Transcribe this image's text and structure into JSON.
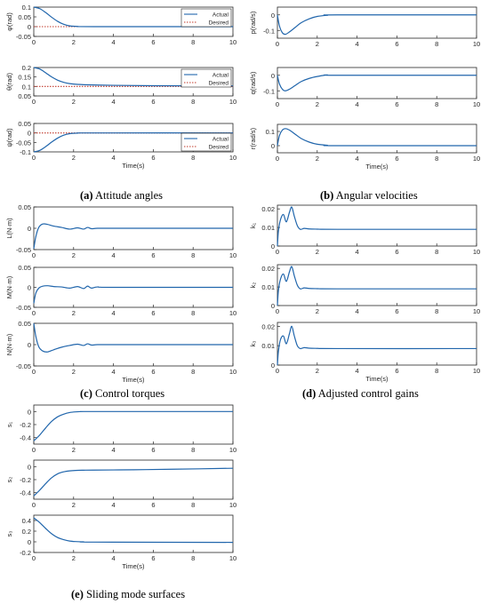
{
  "colors": {
    "actual": "#2166ac",
    "desired": "#c0392b",
    "axis": "#262626",
    "grid_bg": "#ffffff"
  },
  "captions": {
    "a": {
      "letter": "(a)",
      "text": " Attitude angles"
    },
    "b": {
      "letter": "(b)",
      "text": " Angular velocities"
    },
    "c": {
      "letter": "(c)",
      "text": " Control torques"
    },
    "d": {
      "letter": "(d)",
      "text": " Adjusted control gains"
    },
    "e": {
      "letter": "(e)",
      "text": " Sliding mode surfaces"
    }
  },
  "chart_data": [
    {
      "id": "a1",
      "type": "line",
      "ylabel": "φ(rad)",
      "xlabel": "",
      "xlim": [
        0,
        10
      ],
      "ylim": [
        -0.05,
        0.1
      ],
      "yticks": [
        "0.1",
        "0.05",
        "0",
        "-0.05"
      ],
      "ytick_values": [
        0.1,
        0.05,
        0,
        -0.05
      ],
      "xticks": [
        "0",
        "2",
        "4",
        "6",
        "8",
        "10"
      ],
      "legend": [
        "Actual",
        "Desired"
      ],
      "legend_position": "top-right",
      "series": [
        {
          "name": "Actual",
          "x": [
            0,
            0.3,
            0.6,
            0.9,
            1.2,
            1.5,
            1.8,
            2.2,
            3,
            10
          ],
          "values": [
            0.1,
            0.092,
            0.072,
            0.048,
            0.027,
            0.012,
            0.004,
            0.001,
            0,
            0
          ]
        },
        {
          "name": "Desired",
          "style": "dotted",
          "x": [
            0,
            10
          ],
          "values": [
            0,
            0
          ]
        }
      ]
    },
    {
      "id": "a2",
      "type": "line",
      "ylabel": "θ(rad)",
      "xlabel": "",
      "xlim": [
        0,
        10
      ],
      "ylim": [
        0.05,
        0.2
      ],
      "yticks": [
        "0.2",
        "0.15",
        "0.1",
        "0.05"
      ],
      "ytick_values": [
        0.2,
        0.15,
        0.1,
        0.05
      ],
      "xticks": [
        "0",
        "2",
        "4",
        "6",
        "8",
        "10"
      ],
      "legend": [
        "Actual",
        "Desired"
      ],
      "legend_position": "top-right",
      "series": [
        {
          "name": "Actual",
          "x": [
            0,
            0.3,
            0.6,
            0.9,
            1.2,
            1.5,
            1.8,
            2.2,
            3,
            4,
            6,
            10
          ],
          "values": [
            0.2,
            0.192,
            0.172,
            0.15,
            0.133,
            0.122,
            0.115,
            0.111,
            0.108,
            0.106,
            0.104,
            0.103
          ]
        },
        {
          "name": "Desired",
          "style": "dotted",
          "x": [
            0,
            10
          ],
          "values": [
            0.1,
            0.1
          ]
        }
      ]
    },
    {
      "id": "a3",
      "type": "line",
      "ylabel": "ψ(rad)",
      "xlabel": "Time(s)",
      "xlim": [
        0,
        10
      ],
      "ylim": [
        -0.1,
        0.05
      ],
      "yticks": [
        "0.05",
        "0",
        "-0.05",
        "-0.1"
      ],
      "ytick_values": [
        0.05,
        0,
        -0.05,
        -0.1
      ],
      "xticks": [
        "0",
        "2",
        "4",
        "6",
        "8",
        "10"
      ],
      "legend": [
        "Actual",
        "Desired"
      ],
      "legend_position": "bottom-right",
      "series": [
        {
          "name": "Actual",
          "x": [
            0,
            0.3,
            0.6,
            0.9,
            1.2,
            1.5,
            1.8,
            2.2,
            3,
            10
          ],
          "values": [
            -0.1,
            -0.092,
            -0.072,
            -0.048,
            -0.027,
            -0.012,
            -0.004,
            -0.001,
            0,
            0
          ]
        },
        {
          "name": "Desired",
          "style": "dotted",
          "x": [
            0,
            10
          ],
          "values": [
            0,
            0
          ]
        }
      ]
    },
    {
      "id": "b1",
      "type": "line",
      "ylabel": "p(rad/s)",
      "xlabel": "",
      "xlim": [
        0,
        10
      ],
      "ylim": [
        -0.15,
        0.05
      ],
      "yticks": [
        "0",
        "-0.1"
      ],
      "ytick_values": [
        0,
        -0.1
      ],
      "xticks": [
        "0",
        "2",
        "4",
        "6",
        "8",
        "10"
      ],
      "series": [
        {
          "name": "",
          "x": [
            0,
            0.1,
            0.25,
            0.4,
            0.6,
            0.9,
            1.2,
            1.6,
            2,
            2.5,
            3,
            10
          ],
          "values": [
            0,
            -0.07,
            -0.115,
            -0.125,
            -0.11,
            -0.08,
            -0.05,
            -0.025,
            -0.01,
            -0.003,
            0,
            0
          ]
        }
      ]
    },
    {
      "id": "b2",
      "type": "line",
      "ylabel": "q(rad/s)",
      "xlabel": "",
      "xlim": [
        0,
        10
      ],
      "ylim": [
        -0.15,
        0.05
      ],
      "yticks": [
        "0",
        "-0.1"
      ],
      "ytick_values": [
        0,
        -0.1
      ],
      "xticks": [
        "0",
        "2",
        "4",
        "6",
        "8",
        "10"
      ],
      "series": [
        {
          "name": "",
          "x": [
            0,
            0.1,
            0.25,
            0.4,
            0.6,
            0.9,
            1.2,
            1.6,
            2,
            2.5,
            3,
            10
          ],
          "values": [
            0,
            -0.055,
            -0.09,
            -0.1,
            -0.09,
            -0.065,
            -0.04,
            -0.02,
            -0.008,
            0.002,
            0,
            0
          ]
        }
      ]
    },
    {
      "id": "b3",
      "type": "line",
      "ylabel": "r(rad/s)",
      "xlabel": "Time(s)",
      "xlim": [
        0,
        10
      ],
      "ylim": [
        -0.05,
        0.15
      ],
      "yticks": [
        "0.1",
        "0"
      ],
      "ytick_values": [
        0.1,
        0
      ],
      "xticks": [
        "0",
        "2",
        "4",
        "6",
        "8",
        "10"
      ],
      "series": [
        {
          "name": "",
          "x": [
            0,
            0.1,
            0.25,
            0.4,
            0.6,
            0.9,
            1.2,
            1.6,
            2,
            2.5,
            3,
            10
          ],
          "values": [
            0,
            0.07,
            0.11,
            0.12,
            0.11,
            0.08,
            0.05,
            0.025,
            0.01,
            0.003,
            0,
            0
          ]
        }
      ]
    },
    {
      "id": "c1",
      "type": "line",
      "ylabel": "L(N·m)",
      "xlabel": "",
      "xlim": [
        0,
        10
      ],
      "ylim": [
        -0.05,
        0.05
      ],
      "yticks": [
        "0.05",
        "0",
        "-0.05"
      ],
      "ytick_values": [
        0.05,
        0,
        -0.05
      ],
      "xticks": [
        "0",
        "2",
        "4",
        "6",
        "8",
        "10"
      ],
      "series": [
        {
          "name": "",
          "x": [
            0,
            0.1,
            0.25,
            0.45,
            0.7,
            1.0,
            1.4,
            1.8,
            2.2,
            2.5,
            2.7,
            2.9,
            3.2,
            4,
            10
          ],
          "values": [
            -0.048,
            -0.02,
            0.002,
            0.01,
            0.009,
            0.005,
            0.002,
            -0.002,
            0.001,
            -0.002,
            0.002,
            -0.001,
            0,
            0,
            0
          ]
        }
      ]
    },
    {
      "id": "c2",
      "type": "line",
      "ylabel": "M(N·m)",
      "xlabel": "",
      "xlim": [
        0,
        10
      ],
      "ylim": [
        -0.05,
        0.05
      ],
      "yticks": [
        "0.05",
        "0",
        "-0.05"
      ],
      "ytick_values": [
        0.05,
        0,
        -0.05
      ],
      "xticks": [
        "0",
        "2",
        "4",
        "6",
        "8",
        "10"
      ],
      "series": [
        {
          "name": "",
          "x": [
            0,
            0.1,
            0.25,
            0.45,
            0.7,
            1.0,
            1.4,
            1.8,
            2.2,
            2.5,
            2.7,
            2.9,
            3.2,
            4,
            10
          ],
          "values": [
            -0.04,
            -0.015,
            -0.002,
            0.003,
            0.004,
            0.002,
            0.001,
            -0.002,
            0.002,
            -0.003,
            0.003,
            -0.002,
            0.001,
            0,
            0
          ]
        }
      ]
    },
    {
      "id": "c3",
      "type": "line",
      "ylabel": "N(N·m)",
      "xlabel": "Time(s)",
      "xlim": [
        0,
        10
      ],
      "ylim": [
        -0.05,
        0.05
      ],
      "yticks": [
        "0.05",
        "0",
        "-0.05"
      ],
      "ytick_values": [
        0.05,
        0,
        -0.05
      ],
      "xticks": [
        "0",
        "2",
        "4",
        "6",
        "8",
        "10"
      ],
      "series": [
        {
          "name": "",
          "x": [
            0,
            0.1,
            0.25,
            0.45,
            0.7,
            1.0,
            1.4,
            1.8,
            2.2,
            2.5,
            2.7,
            2.9,
            3.2,
            4,
            10
          ],
          "values": [
            0.05,
            0.02,
            -0.005,
            -0.015,
            -0.017,
            -0.012,
            -0.006,
            -0.002,
            0.001,
            -0.002,
            0.002,
            -0.001,
            0,
            0,
            0
          ]
        }
      ]
    },
    {
      "id": "d1",
      "type": "line",
      "ylabel": "k₁",
      "xlabel": "",
      "xlim": [
        0,
        10
      ],
      "ylim": [
        0,
        0.022
      ],
      "yticks": [
        "0.02",
        "0.01",
        "0"
      ],
      "ytick_values": [
        0.02,
        0.01,
        0
      ],
      "xticks": [
        "0",
        "2",
        "4",
        "6",
        "8",
        "10"
      ],
      "series": [
        {
          "name": "",
          "x": [
            0,
            0.05,
            0.15,
            0.3,
            0.45,
            0.6,
            0.72,
            0.85,
            1.0,
            1.15,
            1.35,
            1.6,
            2,
            3,
            10
          ],
          "values": [
            0,
            0.008,
            0.014,
            0.017,
            0.013,
            0.018,
            0.021,
            0.016,
            0.011,
            0.009,
            0.0095,
            0.0092,
            0.0091,
            0.009,
            0.009
          ]
        }
      ]
    },
    {
      "id": "d2",
      "type": "line",
      "ylabel": "k₂",
      "xlabel": "",
      "xlim": [
        0,
        10
      ],
      "ylim": [
        0,
        0.022
      ],
      "yticks": [
        "0.02",
        "0.01",
        "0"
      ],
      "ytick_values": [
        0.02,
        0.01,
        0
      ],
      "xticks": [
        "0",
        "2",
        "4",
        "6",
        "8",
        "10"
      ],
      "series": [
        {
          "name": "",
          "x": [
            0,
            0.05,
            0.15,
            0.3,
            0.45,
            0.6,
            0.72,
            0.85,
            1.0,
            1.15,
            1.35,
            1.6,
            2,
            3,
            10
          ],
          "values": [
            0,
            0.008,
            0.014,
            0.017,
            0.013,
            0.018,
            0.021,
            0.016,
            0.011,
            0.009,
            0.0095,
            0.0092,
            0.0091,
            0.009,
            0.009
          ]
        }
      ]
    },
    {
      "id": "d3",
      "type": "line",
      "ylabel": "k₃",
      "xlabel": "Time(s)",
      "xlim": [
        0,
        10
      ],
      "ylim": [
        0,
        0.022
      ],
      "yticks": [
        "0.02",
        "0.01",
        "0"
      ],
      "ytick_values": [
        0.02,
        0.01,
        0
      ],
      "xticks": [
        "0",
        "2",
        "4",
        "6",
        "8",
        "10"
      ],
      "series": [
        {
          "name": "",
          "x": [
            0,
            0.05,
            0.15,
            0.3,
            0.45,
            0.6,
            0.72,
            0.85,
            1.0,
            1.15,
            1.35,
            1.6,
            2,
            3,
            10
          ],
          "values": [
            0,
            0.007,
            0.013,
            0.015,
            0.011,
            0.016,
            0.02,
            0.015,
            0.01,
            0.0085,
            0.009,
            0.0087,
            0.0086,
            0.0085,
            0.0085
          ]
        }
      ]
    },
    {
      "id": "e1",
      "type": "line",
      "ylabel": "s₁",
      "xlabel": "",
      "xlim": [
        0,
        10
      ],
      "ylim": [
        -0.5,
        0.1
      ],
      "yticks": [
        "0",
        "-0.2",
        "-0.4"
      ],
      "ytick_values": [
        0,
        -0.2,
        -0.4
      ],
      "xticks": [
        "0",
        "2",
        "4",
        "6",
        "8",
        "10"
      ],
      "series": [
        {
          "name": "",
          "x": [
            0,
            0.3,
            0.6,
            0.9,
            1.2,
            1.5,
            1.8,
            2.1,
            2.5,
            3,
            10
          ],
          "values": [
            -0.45,
            -0.36,
            -0.25,
            -0.15,
            -0.08,
            -0.04,
            -0.015,
            -0.005,
            0,
            0,
            0
          ]
        }
      ]
    },
    {
      "id": "e2",
      "type": "line",
      "ylabel": "s₂",
      "xlabel": "",
      "xlim": [
        0,
        10
      ],
      "ylim": [
        -0.5,
        0.1
      ],
      "yticks": [
        "0",
        "-0.2",
        "-0.4"
      ],
      "ytick_values": [
        0,
        -0.2,
        -0.4
      ],
      "xticks": [
        "0",
        "2",
        "4",
        "6",
        "8",
        "10"
      ],
      "series": [
        {
          "name": "",
          "x": [
            0,
            0.3,
            0.6,
            0.9,
            1.2,
            1.5,
            1.8,
            2.1,
            2.5,
            3,
            5,
            7,
            10
          ],
          "values": [
            -0.45,
            -0.36,
            -0.26,
            -0.17,
            -0.11,
            -0.08,
            -0.065,
            -0.058,
            -0.055,
            -0.053,
            -0.048,
            -0.04,
            -0.025
          ]
        }
      ]
    },
    {
      "id": "e3",
      "type": "line",
      "ylabel": "s₃",
      "xlabel": "Time(s)",
      "xlim": [
        0,
        10
      ],
      "ylim": [
        -0.2,
        0.5
      ],
      "yticks": [
        "0.4",
        "0.2",
        "0",
        "-0.2"
      ],
      "ytick_values": [
        0.4,
        0.2,
        0,
        -0.2
      ],
      "xticks": [
        "0",
        "2",
        "4",
        "6",
        "8",
        "10"
      ],
      "series": [
        {
          "name": "",
          "x": [
            0,
            0.3,
            0.6,
            0.9,
            1.2,
            1.5,
            1.8,
            2.1,
            2.5,
            3,
            10
          ],
          "values": [
            0.45,
            0.36,
            0.25,
            0.15,
            0.08,
            0.04,
            0.015,
            0.005,
            0,
            -0.005,
            -0.01
          ]
        }
      ]
    }
  ]
}
